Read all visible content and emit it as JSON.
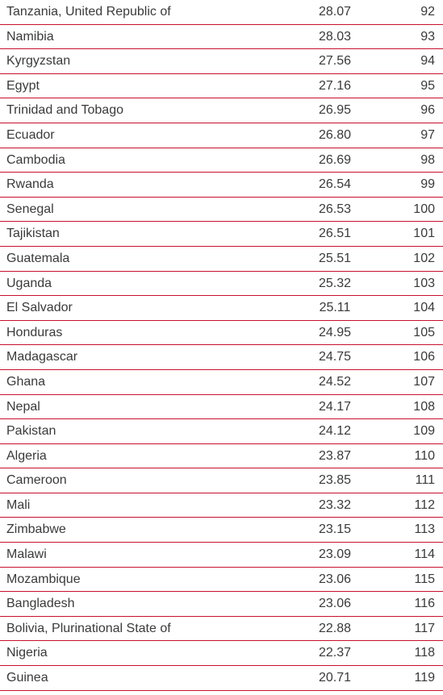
{
  "table": {
    "rows": [
      [
        "Tanzania, United Republic of",
        "28.07",
        92
      ],
      [
        "Namibia",
        "28.03",
        93
      ],
      [
        "Kyrgyzstan",
        "27.56",
        94
      ],
      [
        "Egypt",
        "27.16",
        95
      ],
      [
        "Trinidad and Tobago",
        "26.95",
        96
      ],
      [
        "Ecuador",
        "26.80",
        97
      ],
      [
        "Cambodia",
        "26.69",
        98
      ],
      [
        "Rwanda",
        "26.54",
        99
      ],
      [
        "Senegal",
        "26.53",
        100
      ],
      [
        "Tajikistan",
        "26.51",
        101
      ],
      [
        "Guatemala",
        "25.51",
        102
      ],
      [
        "Uganda",
        "25.32",
        103
      ],
      [
        "El Salvador",
        "25.11",
        104
      ],
      [
        "Honduras",
        "24.95",
        105
      ],
      [
        "Madagascar",
        "24.75",
        106
      ],
      [
        "Ghana",
        "24.52",
        107
      ],
      [
        "Nepal",
        "24.17",
        108
      ],
      [
        "Pakistan",
        "24.12",
        109
      ],
      [
        "Algeria",
        "23.87",
        110
      ],
      [
        "Cameroon",
        "23.85",
        111
      ],
      [
        "Mali",
        "23.32",
        112
      ],
      [
        "Zimbabwe",
        "23.15",
        113
      ],
      [
        "Malawi",
        "23.09",
        114
      ],
      [
        "Mozambique",
        "23.06",
        115
      ],
      [
        "Bangladesh",
        "23.06",
        116
      ],
      [
        "Bolivia, Plurinational State of",
        "22.88",
        117
      ],
      [
        "Nigeria",
        "22.37",
        118
      ],
      [
        "Guinea",
        "20.71",
        119
      ]
    ]
  }
}
